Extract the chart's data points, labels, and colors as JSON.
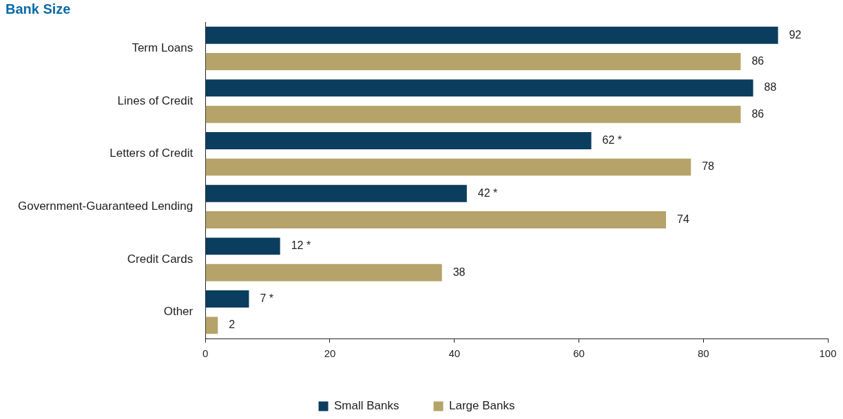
{
  "chart_data": {
    "type": "bar",
    "orientation": "horizontal",
    "title": "Bank Size",
    "categories": [
      "Term Loans",
      "Lines of Credit",
      "Letters of Credit",
      "Government-Guaranteed Lending",
      "Credit Cards",
      "Other"
    ],
    "series": [
      {
        "name": "Small Banks",
        "color": "#0b3d5e",
        "values": [
          92,
          88,
          62,
          42,
          12,
          7
        ],
        "value_labels": [
          "92",
          "88",
          "62 *",
          "42 *",
          "12 *",
          "7 *"
        ]
      },
      {
        "name": "Large Banks",
        "color": "#b5a36a",
        "values": [
          86,
          86,
          78,
          74,
          38,
          2
        ],
        "value_labels": [
          "86",
          "86",
          "78",
          "74",
          "38",
          "2"
        ]
      }
    ],
    "xlim": [
      0,
      100
    ],
    "xticks": [
      0,
      20,
      40,
      60,
      80,
      100
    ],
    "grid": false,
    "legend": "bottom"
  }
}
